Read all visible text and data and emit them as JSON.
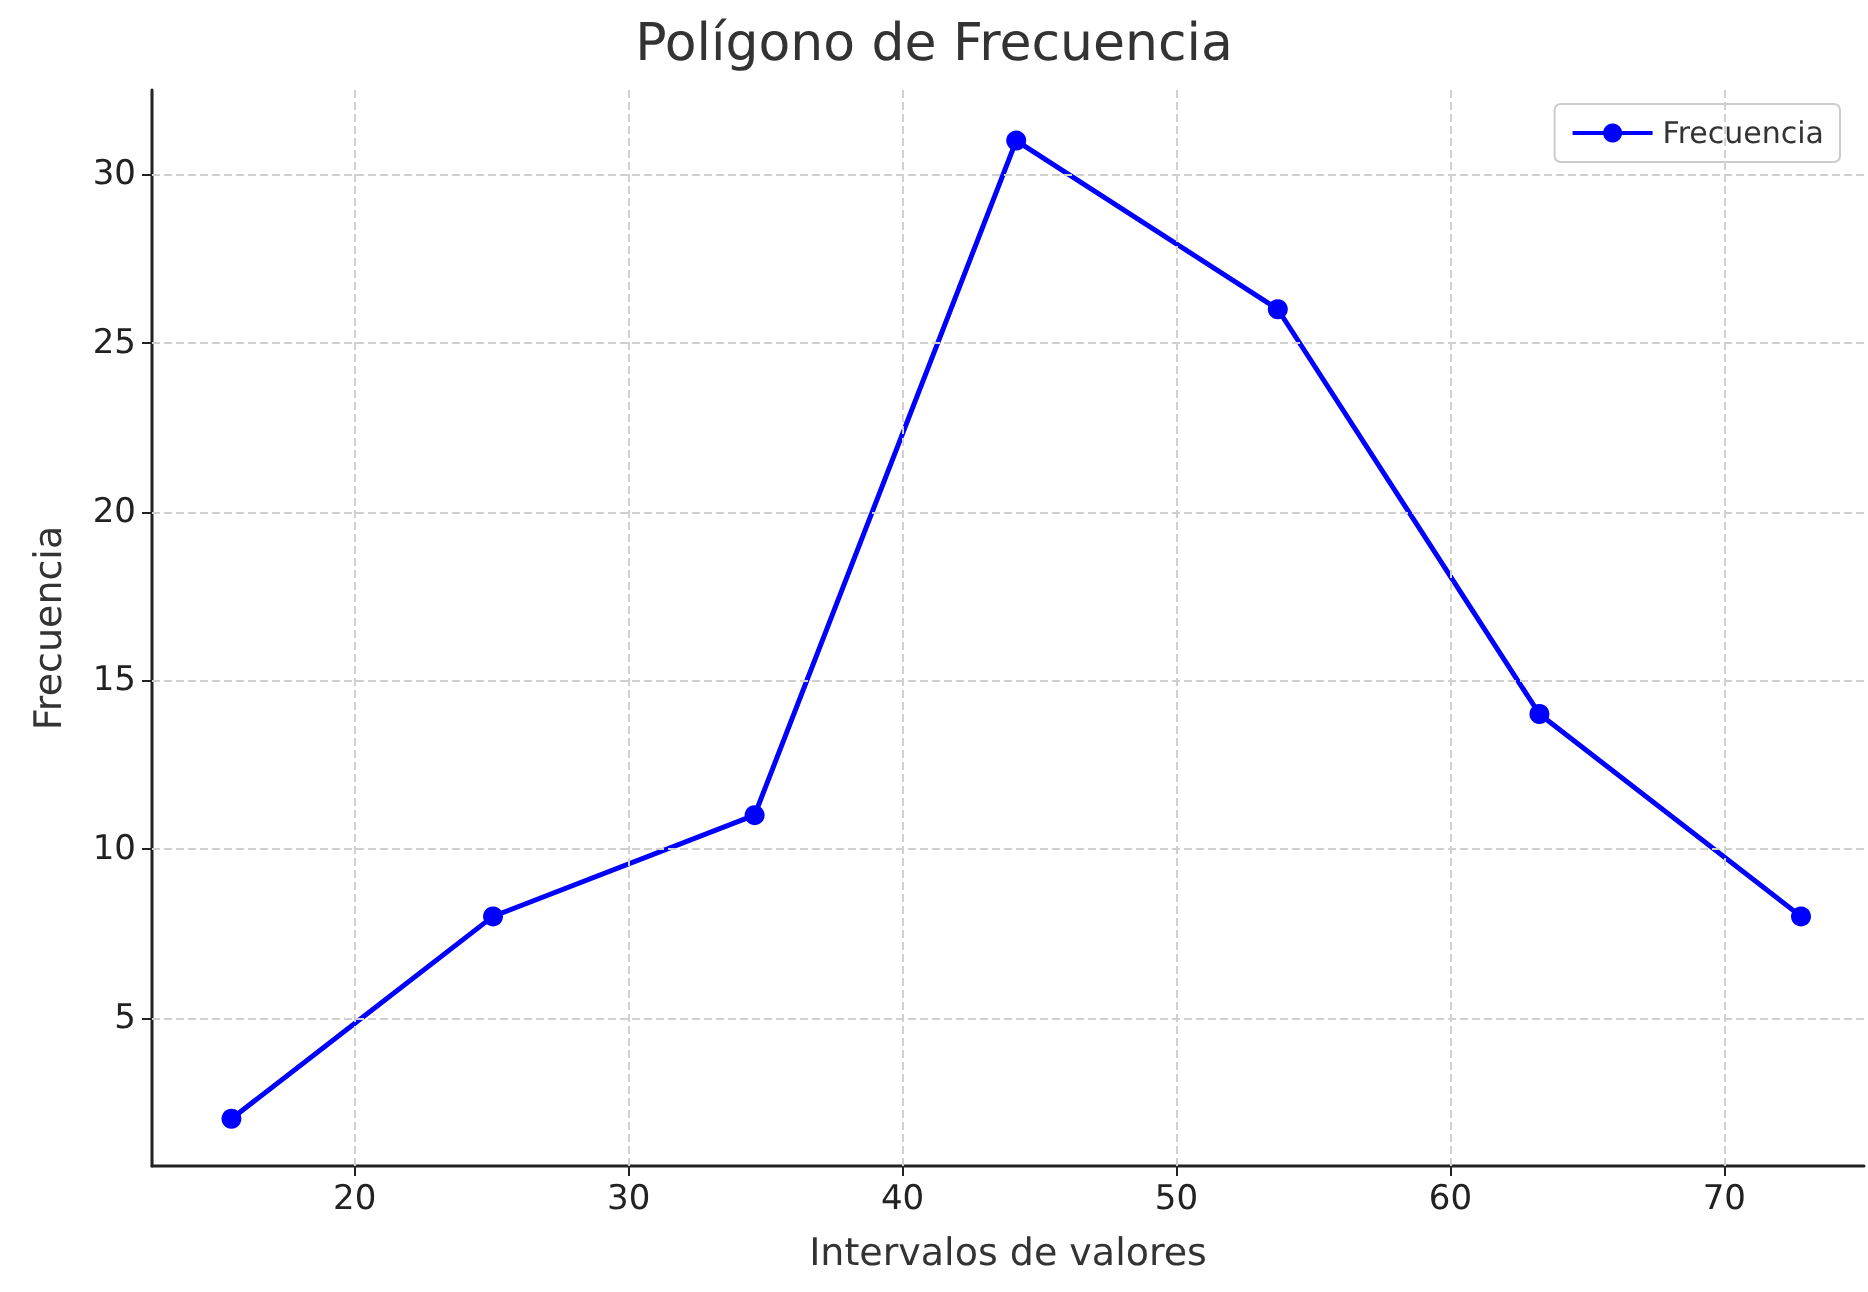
{
  "chart_data": {
    "type": "line",
    "title": "Polígono de Frecuencia",
    "xlabel": "Intervalos de valores",
    "ylabel": "Frecuencia",
    "x": [
      15.5,
      25.05,
      34.6,
      44.15,
      53.7,
      63.25,
      72.8
    ],
    "series": [
      {
        "name": "Frecuencia",
        "color": "#0000ff",
        "values": [
          2,
          8,
          11,
          31,
          26,
          14,
          8
        ]
      }
    ],
    "xlim": [
      12.6,
      75.1
    ],
    "xticks": [
      20,
      30,
      40,
      50,
      60,
      70
    ],
    "ylim": [
      0.6,
      32.5
    ],
    "yticks": [
      5,
      10,
      15,
      20,
      25,
      30
    ],
    "grid": true,
    "legend": "top right",
    "marker": "circle",
    "line_style": "solid"
  }
}
